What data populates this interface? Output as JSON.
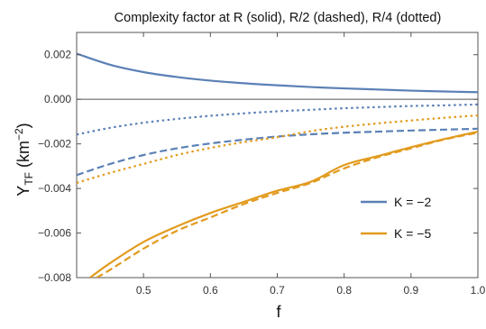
{
  "chart_data": {
    "type": "line",
    "title": "Complexity factor at R (solid), R/2 (dashed), R/4 (dotted)",
    "xlabel": "f",
    "ylabel": {
      "main": "Y",
      "subscript": "TF",
      "unit_open": " (km",
      "unit_exp": "−2",
      "unit_close": ")"
    },
    "xlim": [
      0.4,
      1.0
    ],
    "ylim": [
      -0.008,
      0.003
    ],
    "x_ticks": [
      {
        "value": 0.5,
        "label": "0.5"
      },
      {
        "value": 0.6,
        "label": "0.6"
      },
      {
        "value": 0.7,
        "label": "0.7"
      },
      {
        "value": 0.8,
        "label": "0.8"
      },
      {
        "value": 0.9,
        "label": "0.9"
      },
      {
        "value": 1.0,
        "label": "1.0"
      }
    ],
    "y_ticks": [
      {
        "value": 0.002,
        "label": "0.002"
      },
      {
        "value": 0.0,
        "label": "0.000"
      },
      {
        "value": -0.002,
        "label": "−0.002"
      },
      {
        "value": -0.004,
        "label": "−0.004"
      },
      {
        "value": -0.006,
        "label": "−0.006"
      },
      {
        "value": -0.008,
        "label": "−0.008"
      }
    ],
    "grid": false,
    "zero_line": true,
    "legend_position": "lower-right",
    "legend": [
      {
        "label": "K = −2",
        "color": "#5b80b6"
      },
      {
        "label": "K = −5",
        "color": "#e29b1e"
      }
    ],
    "series": [
      {
        "K": -2,
        "color": "#5b80b6",
        "dash": "solid",
        "x": [
          0.4,
          0.45,
          0.5,
          0.55,
          0.6,
          0.65,
          0.7,
          0.75,
          0.8,
          0.85,
          0.9,
          0.95,
          1.0
        ],
        "y": [
          0.00205,
          0.00155,
          0.00122,
          0.001,
          0.00084,
          0.00072,
          0.00063,
          0.00055,
          0.00049,
          0.00044,
          0.00039,
          0.00035,
          0.00032
        ]
      },
      {
        "K": -2,
        "color": "#5b80b6",
        "dash": "dashed",
        "x": [
          0.4,
          0.45,
          0.5,
          0.55,
          0.6,
          0.65,
          0.7,
          0.75,
          0.8,
          0.85,
          0.9,
          0.95,
          1.0
        ],
        "y": [
          -0.0034,
          -0.0029,
          -0.0025,
          -0.0022,
          -0.00198,
          -0.00181,
          -0.00167,
          -0.00157,
          -0.0015,
          -0.00145,
          -0.0014,
          -0.00136,
          -0.00132
        ]
      },
      {
        "K": -2,
        "color": "#5b80b6",
        "dash": "dotted",
        "x": [
          0.4,
          0.45,
          0.5,
          0.55,
          0.6,
          0.65,
          0.7,
          0.75,
          0.8,
          0.85,
          0.9,
          0.95,
          1.0
        ],
        "y": [
          -0.00158,
          -0.00128,
          -0.00105,
          -0.00088,
          -0.00074,
          -0.00063,
          -0.00054,
          -0.00047,
          -0.0004,
          -0.00035,
          -0.0003,
          -0.00027,
          -0.00023
        ]
      },
      {
        "K": -5,
        "color": "#e29b1e",
        "dash": "solid",
        "x": [
          0.42,
          0.45,
          0.5,
          0.55,
          0.6,
          0.65,
          0.7,
          0.75,
          0.8,
          0.85,
          0.9,
          0.95,
          1.0
        ],
        "y": [
          -0.008,
          -0.00735,
          -0.0064,
          -0.0057,
          -0.0051,
          -0.0046,
          -0.0041,
          -0.0037,
          -0.00295,
          -0.00255,
          -0.00215,
          -0.00178,
          -0.00145
        ]
      },
      {
        "K": -5,
        "color": "#e29b1e",
        "dash": "dashed",
        "x": [
          0.43,
          0.45,
          0.5,
          0.55,
          0.6,
          0.65,
          0.7,
          0.75,
          0.8,
          0.85,
          0.9,
          0.95,
          1.0
        ],
        "y": [
          -0.008,
          -0.00765,
          -0.0067,
          -0.0059,
          -0.0053,
          -0.0047,
          -0.0042,
          -0.00375,
          -0.0031,
          -0.0026,
          -0.0022,
          -0.0018,
          -0.0015
        ]
      },
      {
        "K": -5,
        "color": "#e29b1e",
        "dash": "dotted",
        "x": [
          0.4,
          0.45,
          0.5,
          0.55,
          0.6,
          0.65,
          0.7,
          0.75,
          0.8,
          0.85,
          0.9,
          0.95,
          1.0
        ],
        "y": [
          -0.00375,
          -0.0033,
          -0.0029,
          -0.0025,
          -0.00218,
          -0.00192,
          -0.0017,
          -0.00143,
          -0.00123,
          -0.00108,
          -0.00095,
          -0.00083,
          -0.00072
        ]
      }
    ]
  }
}
